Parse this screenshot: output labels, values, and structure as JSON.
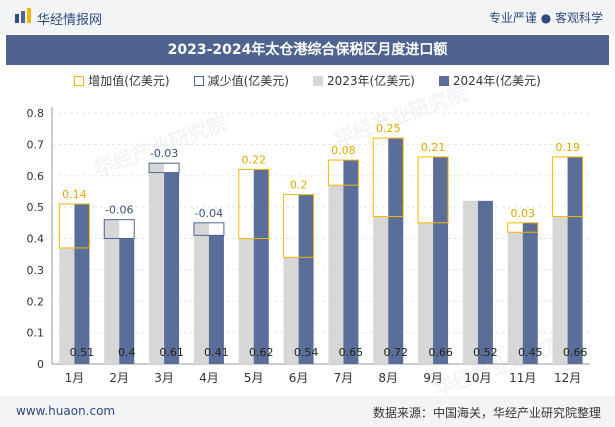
{
  "header": {
    "brand_name": "华经情报网",
    "tagline": "专业严谨 ● 客观科学"
  },
  "title": "2023-2024年太仓港综合保税区月度进口额",
  "legend": {
    "increase": "增加值(亿美元)",
    "decrease": "减少值(亿美元)",
    "y2023": "2023年(亿美元)",
    "y2024": "2024年(亿美元)"
  },
  "footer": {
    "url": "www.huaon.com",
    "source": "数据来源：中国海关，华经产业研究院整理"
  },
  "watermark_text": "华经产业研究院",
  "colors": {
    "bar_2023": "#d7d7d7",
    "bar_2024": "#5b6e99",
    "increase_outline": "#f5b800",
    "decrease_outline": "#4f6390",
    "title_bg": "#4f6390"
  },
  "chart_data": {
    "type": "bar",
    "categories": [
      "1月",
      "2月",
      "3月",
      "4月",
      "5月",
      "6月",
      "7月",
      "8月",
      "9月",
      "10月",
      "11月",
      "12月"
    ],
    "series": [
      {
        "name": "2023年(亿美元)",
        "values": [
          0.37,
          0.46,
          0.64,
          0.45,
          0.4,
          0.34,
          0.57,
          0.47,
          0.45,
          0.52,
          0.42,
          0.47
        ]
      },
      {
        "name": "2024年(亿美元)",
        "values": [
          0.51,
          0.4,
          0.61,
          0.41,
          0.62,
          0.54,
          0.65,
          0.72,
          0.66,
          0.52,
          0.45,
          0.66
        ]
      }
    ],
    "change_labels": [
      "0.14",
      "-0.06",
      "-0.03",
      "-0.04",
      "0.22",
      "0.2",
      "0.08",
      "0.25",
      "0.21",
      "",
      "0.03",
      "0.19"
    ],
    "value_labels_2024": [
      "0.51",
      "0.4",
      "0.61",
      "0.41",
      "0.62",
      "0.54",
      "0.65",
      "0.72",
      "0.66",
      "0.52",
      "0.45",
      "0.66"
    ],
    "ylim": [
      0,
      0.8
    ],
    "yticks": [
      "0",
      "0.1",
      "0.2",
      "0.3",
      "0.4",
      "0.5",
      "0.6",
      "0.7",
      "0.8"
    ],
    "grid": true
  }
}
